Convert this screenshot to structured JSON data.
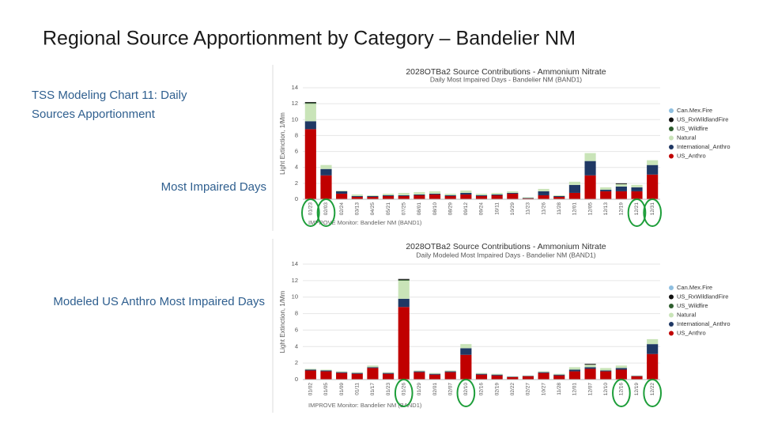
{
  "slide": {
    "title": "Regional Source Apportionment by Category – Bandelier NM",
    "labels": [
      "TSS Modeling Chart 11:  Daily",
      "Sources Apportionment",
      "Most Impaired Days",
      "Modeled US Anthro Most Impaired Days"
    ]
  },
  "chart_data": [
    {
      "type": "stacked-bar",
      "title": "2028OTBa2 Source Contributions - Ammonium Nitrate",
      "subtitle": "Daily Most Impaired Days - Bandelier NM (BAND1)",
      "y_label": "Light Extinction, 1/Mm",
      "x_label": "IMPROVE Monitor: Bandelier NM (BAND1)",
      "ylim": [
        0,
        14
      ],
      "yticks": [
        0,
        2,
        4,
        6,
        8,
        10,
        12,
        14
      ],
      "grid": true,
      "legend": "right",
      "categories": [
        "01/23",
        "02/03",
        "02/24",
        "03/13",
        "04/25",
        "05/21",
        "07/25",
        "08/01",
        "08/10",
        "08/29",
        "09/12",
        "09/24",
        "10/11",
        "10/29",
        "11/23",
        "11/26",
        "11/28",
        "12/01",
        "12/05",
        "12/13",
        "12/19",
        "12/21",
        "12/31"
      ],
      "series": [
        {
          "name": "US_Anthro",
          "color": "#c00000",
          "values": [
            8.8,
            3.0,
            0.7,
            0.3,
            0.3,
            0.4,
            0.4,
            0.5,
            0.6,
            0.4,
            0.6,
            0.4,
            0.5,
            0.7,
            0.1,
            0.5,
            0.3,
            0.8,
            3.0,
            1.0,
            1.0,
            1.0,
            3.1
          ]
        },
        {
          "name": "International_Anthro",
          "color": "#1f3864",
          "values": [
            1.0,
            0.8,
            0.3,
            0.1,
            0.1,
            0.1,
            0.1,
            0.1,
            0.1,
            0.1,
            0.2,
            0.1,
            0.1,
            0.1,
            0.05,
            0.5,
            0.1,
            1.0,
            1.8,
            0.2,
            0.6,
            0.5,
            1.2
          ]
        },
        {
          "name": "Natural",
          "color": "#c9e4b8",
          "values": [
            2.2,
            0.5,
            0.1,
            0.2,
            0.1,
            0.2,
            0.3,
            0.3,
            0.3,
            0.2,
            0.3,
            0.2,
            0.2,
            0.2,
            0.1,
            0.3,
            0.1,
            0.4,
            1.0,
            0.3,
            0.3,
            0.3,
            0.6
          ]
        },
        {
          "name": "US_Wildfire",
          "color": "#2e5e2e",
          "values": [
            0.1,
            0,
            0,
            0,
            0,
            0,
            0,
            0,
            0,
            0,
            0,
            0,
            0,
            0,
            0,
            0,
            0,
            0,
            0,
            0,
            0,
            0,
            0
          ]
        },
        {
          "name": "US_RxWildlandFire",
          "color": "#111111",
          "values": [
            0.1,
            0,
            0,
            0,
            0,
            0,
            0,
            0,
            0,
            0,
            0,
            0,
            0,
            0,
            0,
            0,
            0,
            0,
            0,
            0,
            0.1,
            0,
            0
          ]
        },
        {
          "name": "Can.Mex.Fire",
          "color": "#8fbfe0",
          "values": [
            0,
            0,
            0,
            0,
            0,
            0,
            0,
            0,
            0,
            0,
            0,
            0,
            0,
            0,
            0,
            0,
            0,
            0,
            0,
            0,
            0,
            0,
            0
          ]
        }
      ]
    },
    {
      "type": "stacked-bar",
      "title": "2028OTBa2 Source Contributions - Ammonium Nitrate",
      "subtitle": "Daily Modeled Most Impaired Days - Bandelier NM (BAND1)",
      "y_label": "Light Extinction, 1/Mm",
      "x_label": "IMPROVE Monitor: Bandelier NM (BAND1)",
      "ylim": [
        0,
        14
      ],
      "yticks": [
        0,
        2,
        4,
        6,
        8,
        10,
        12,
        14
      ],
      "grid": true,
      "legend": "right",
      "categories": [
        "01/02",
        "01/05",
        "01/09",
        "01/11",
        "01/17",
        "01/23",
        "01/26",
        "01/29",
        "02/01",
        "02/07",
        "02/10",
        "02/16",
        "02/19",
        "02/22",
        "02/27",
        "10/27",
        "11/28",
        "12/01",
        "12/07",
        "12/10",
        "12/16",
        "12/19",
        "12/22"
      ],
      "series": [
        {
          "name": "US_Anthro",
          "color": "#c00000",
          "values": [
            1.1,
            1.0,
            0.8,
            0.7,
            1.4,
            0.7,
            8.8,
            0.9,
            0.6,
            0.9,
            3.0,
            0.6,
            0.5,
            0.3,
            0.4,
            0.8,
            0.5,
            1.0,
            1.3,
            1.0,
            1.2,
            0.4,
            3.1
          ]
        },
        {
          "name": "International_Anthro",
          "color": "#1f3864",
          "values": [
            0.1,
            0.1,
            0.1,
            0.1,
            0.1,
            0.1,
            1.0,
            0.1,
            0.1,
            0.1,
            0.8,
            0.1,
            0.1,
            0.05,
            0.05,
            0.1,
            0.1,
            0.2,
            0.2,
            0.1,
            0.2,
            0.05,
            1.2
          ]
        },
        {
          "name": "Natural",
          "color": "#c9e4b8",
          "values": [
            0.1,
            0.1,
            0.1,
            0.1,
            0.2,
            0.1,
            2.2,
            0.1,
            0.1,
            0.1,
            0.5,
            0.1,
            0.1,
            0.05,
            0.05,
            0.1,
            0.1,
            0.3,
            0.3,
            0.3,
            0.3,
            0.05,
            0.6
          ]
        },
        {
          "name": "US_Wildfire",
          "color": "#2e5e2e",
          "values": [
            0,
            0,
            0,
            0,
            0,
            0,
            0.1,
            0,
            0,
            0,
            0,
            0,
            0,
            0,
            0,
            0,
            0,
            0,
            0,
            0,
            0,
            0,
            0
          ]
        },
        {
          "name": "US_RxWildlandFire",
          "color": "#111111",
          "values": [
            0,
            0,
            0,
            0,
            0,
            0,
            0.1,
            0,
            0,
            0,
            0,
            0,
            0,
            0,
            0,
            0,
            0,
            0,
            0.1,
            0,
            0,
            0,
            0
          ]
        },
        {
          "name": "Can.Mex.Fire",
          "color": "#8fbfe0",
          "values": [
            0,
            0,
            0,
            0,
            0,
            0,
            0,
            0,
            0,
            0,
            0,
            0,
            0,
            0,
            0,
            0,
            0,
            0,
            0,
            0,
            0,
            0,
            0
          ]
        }
      ]
    }
  ]
}
